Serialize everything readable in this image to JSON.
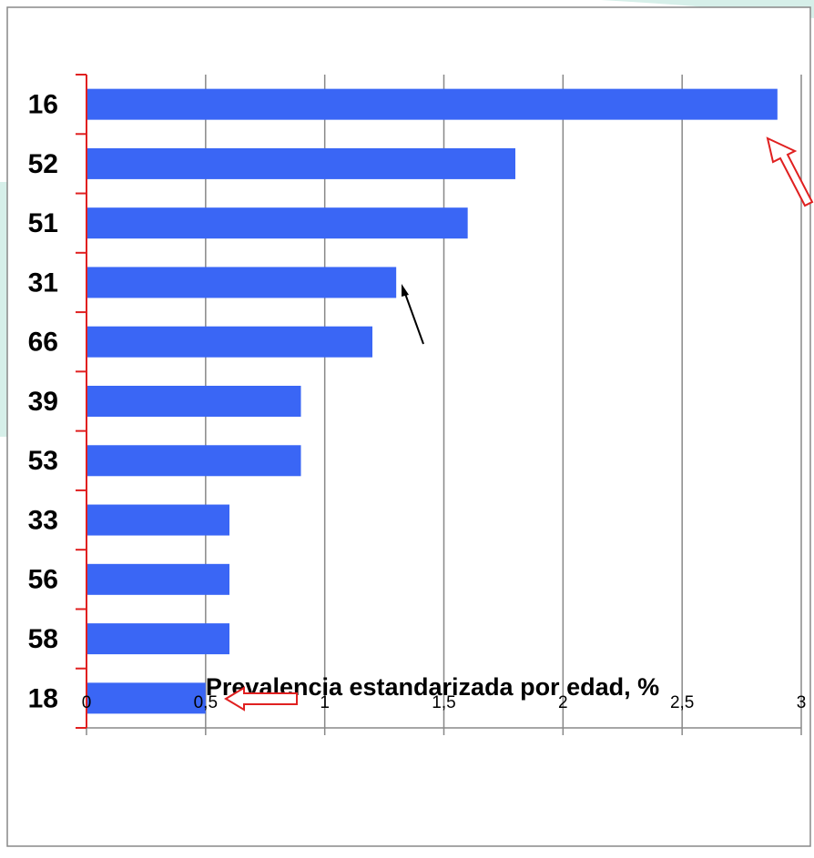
{
  "chart_data": {
    "type": "barh",
    "axis_label": "Prevalencia estandarizada por edad, %",
    "categories": [
      "16",
      "52",
      "51",
      "31",
      "66",
      "39",
      "53",
      "33",
      "56",
      "58",
      "18"
    ],
    "values": [
      2.9,
      1.8,
      1.6,
      1.3,
      1.2,
      0.9,
      0.9,
      0.6,
      0.6,
      0.6,
      0.5
    ],
    "color": "#3a66f5",
    "xlim": [
      0,
      3
    ],
    "xticks": [
      0,
      {
        "value": 0.5,
        "label": "0,5"
      },
      1,
      {
        "value": 1.5,
        "label": "1,5"
      },
      2,
      {
        "value": 2.5,
        "label": "2,5"
      },
      3
    ],
    "grid": true
  }
}
